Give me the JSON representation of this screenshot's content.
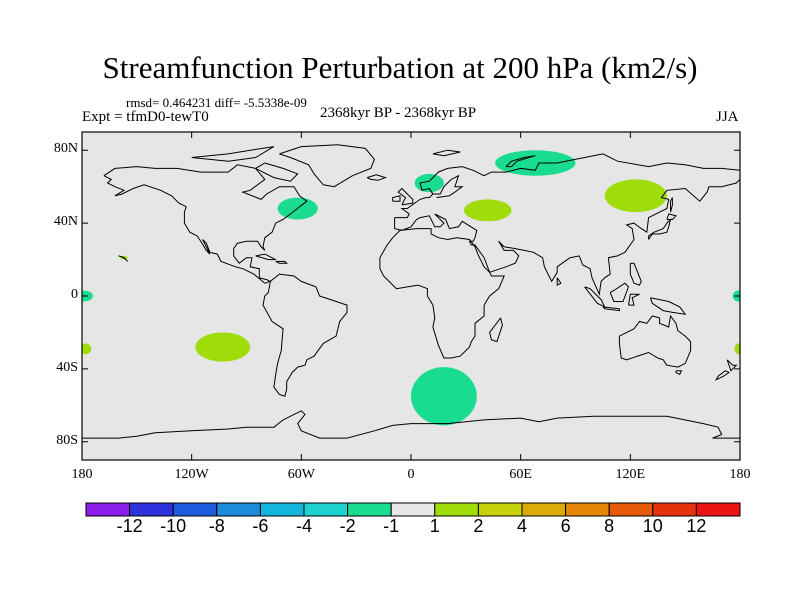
{
  "title": "Streamfunction Perturbation at 200 hPa (km2/s)",
  "rmsd_text": "rmsd= 0.464231 diff= -5.5338e-09",
  "expt_text": "Expt = tfmD0-tewT0",
  "period_text": "2368kyr BP - 2368kyr BP",
  "season_text": "JJA",
  "colors": {
    "land_ocean": "#e6e6e6",
    "neg1_neg2": "#19dc91",
    "pos1_pos2": "#a0dc0a"
  },
  "chart_data": {
    "type": "contour_map",
    "projection": "cylindrical equidistant",
    "xlim": [
      -180,
      180
    ],
    "ylim": [
      -90,
      90
    ],
    "lat_ticks": [
      {
        "value": 80,
        "label": "80N"
      },
      {
        "value": 40,
        "label": "40N"
      },
      {
        "value": 0,
        "label": "0"
      },
      {
        "value": -40,
        "label": "40S"
      },
      {
        "value": -80,
        "label": "80S"
      }
    ],
    "lon_ticks": [
      {
        "value": -180,
        "label": "180"
      },
      {
        "value": -120,
        "label": "120W"
      },
      {
        "value": -60,
        "label": "60W"
      },
      {
        "value": 0,
        "label": "0"
      },
      {
        "value": 60,
        "label": "60E"
      },
      {
        "value": 120,
        "label": "120E"
      },
      {
        "value": 180,
        "label": "180"
      }
    ],
    "colorbar": {
      "labels": [
        "-12",
        "-10",
        "-8",
        "-6",
        "-4",
        "-2",
        "-1",
        "1",
        "2",
        "4",
        "6",
        "8",
        "10",
        "12"
      ],
      "colors": [
        "#8c1eeb",
        "#2d32dc",
        "#1e5adc",
        "#1e8cdc",
        "#14b4dc",
        "#1ed2d2",
        "#19dc91",
        "#e6e6e6",
        "#a0dc0a",
        "#c8d20a",
        "#dcaa0a",
        "#e6870a",
        "#e65a0a",
        "#e6320a",
        "#eb1414"
      ]
    },
    "anomalies": [
      {
        "name": "north-pacific-east-negative",
        "sign": "negative",
        "lon": -179,
        "lat": 0,
        "rlon": 5,
        "rlat": 3
      },
      {
        "name": "north-pacific-east-edge-negative",
        "sign": "negative",
        "lon": 179,
        "lat": 0,
        "rlon": 3,
        "rlat": 3
      },
      {
        "name": "south-pacific-west-positive",
        "sign": "positive",
        "lon": -178,
        "lat": -29,
        "rlon": 3,
        "rlat": 3
      },
      {
        "name": "south-pacific-east-edge-positive",
        "sign": "positive",
        "lon": 179,
        "lat": -29,
        "rlon": 2,
        "rlat": 3
      },
      {
        "name": "hawaii-positive",
        "sign": "positive",
        "lon": -157,
        "lat": 21,
        "rlon": 2,
        "rlat": 1
      },
      {
        "name": "south-pacific-positive",
        "sign": "positive",
        "lon": -103,
        "lat": -28,
        "rlon": 15,
        "rlat": 8
      },
      {
        "name": "newfoundland-negative",
        "sign": "negative",
        "lon": -62,
        "lat": 48,
        "rlon": 11,
        "rlat": 6
      },
      {
        "name": "scandinavia-negative",
        "sign": "negative",
        "lon": 10,
        "lat": 62,
        "rlon": 8,
        "rlat": 5
      },
      {
        "name": "siberia-negative",
        "sign": "negative",
        "lon": 68,
        "lat": 73,
        "rlon": 22,
        "rlat": 7
      },
      {
        "name": "caspian-positive",
        "sign": "positive",
        "lon": 42,
        "lat": 47,
        "rlon": 13,
        "rlat": 6
      },
      {
        "name": "manchuria-positive",
        "sign": "positive",
        "lon": 123,
        "lat": 55,
        "rlon": 17,
        "rlat": 9
      },
      {
        "name": "south-atlantic-negative",
        "sign": "negative",
        "lon": 18,
        "lat": -55,
        "rlon": 18,
        "rlat": 16
      }
    ]
  }
}
